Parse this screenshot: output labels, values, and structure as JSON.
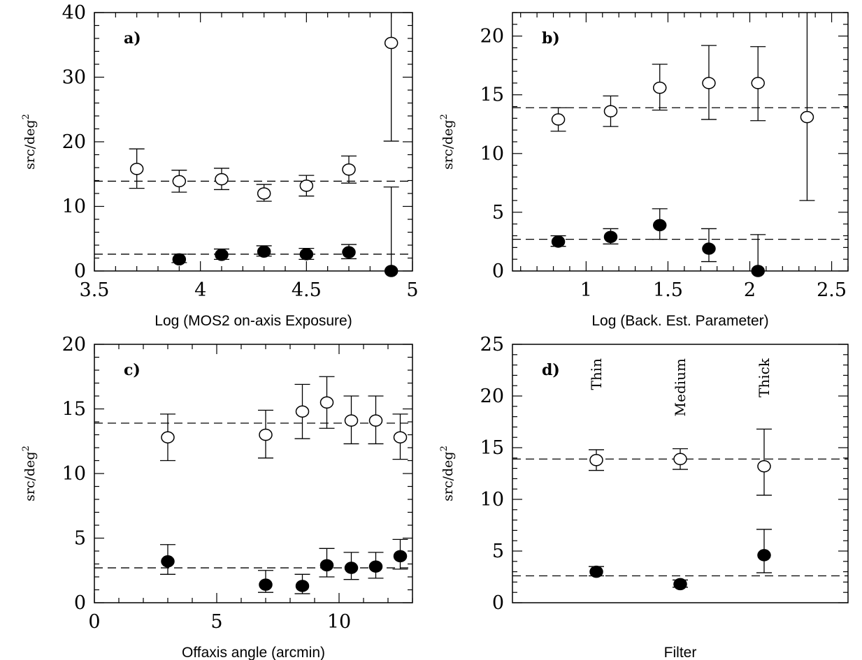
{
  "chart_data": [
    {
      "type": "scatter",
      "panel_label": "a)",
      "xlabel": "Log (MOS2 on-axis Exposure)",
      "ylabel": "src/deg",
      "ylabel_sup": "2",
      "xlim": [
        3.5,
        5
      ],
      "ylim": [
        0,
        40
      ],
      "xticks": [
        3.5,
        4,
        4.5,
        5
      ],
      "xtick_labels": [
        "3.5",
        "4",
        "4.5",
        "5"
      ],
      "yticks": [
        0,
        10,
        20,
        30,
        40
      ],
      "ytick_labels": [
        "0",
        "10",
        "20",
        "30",
        "40"
      ],
      "x_minor": 0.1,
      "y_minor": 2,
      "reference_lines": [
        13.9,
        2.6
      ],
      "series": [
        {
          "marker": "open",
          "points": [
            {
              "x": 3.7,
              "y": 15.8,
              "lo": 12.8,
              "hi": 18.9
            },
            {
              "x": 3.9,
              "y": 13.9,
              "lo": 12.2,
              "hi": 15.6
            },
            {
              "x": 4.1,
              "y": 14.2,
              "lo": 12.6,
              "hi": 15.9
            },
            {
              "x": 4.3,
              "y": 12.0,
              "lo": 10.8,
              "hi": 13.4
            },
            {
              "x": 4.5,
              "y": 13.2,
              "lo": 11.6,
              "hi": 14.8
            },
            {
              "x": 4.7,
              "y": 15.7,
              "lo": 13.6,
              "hi": 17.8
            },
            {
              "x": 4.9,
              "y": 35.3,
              "lo": 20.1,
              "hi": 40
            }
          ]
        },
        {
          "marker": "filled",
          "points": [
            {
              "x": 3.9,
              "y": 1.8,
              "lo": 1.3,
              "hi": 2.6
            },
            {
              "x": 4.1,
              "y": 2.5,
              "lo": 1.8,
              "hi": 3.4
            },
            {
              "x": 4.3,
              "y": 3.0,
              "lo": 2.3,
              "hi": 3.9
            },
            {
              "x": 4.5,
              "y": 2.6,
              "lo": 1.8,
              "hi": 3.5
            },
            {
              "x": 4.7,
              "y": 2.9,
              "lo": 1.9,
              "hi": 4.1
            },
            {
              "x": 4.9,
              "y": 0,
              "lo": 0,
              "hi": 13.0
            }
          ]
        }
      ]
    },
    {
      "type": "scatter",
      "panel_label": "b)",
      "xlabel": "Log (Back. Est. Parameter)",
      "ylabel": "src/deg",
      "ylabel_sup": "2",
      "xlim": [
        0.55,
        2.6
      ],
      "ylim": [
        0,
        22
      ],
      "xticks": [
        1,
        1.5,
        2,
        2.5
      ],
      "xtick_labels": [
        "1",
        "1.5",
        "2",
        "2.5"
      ],
      "yticks": [
        0,
        5,
        10,
        15,
        20
      ],
      "ytick_labels": [
        "0",
        "5",
        "10",
        "15",
        "20"
      ],
      "x_minor": 0.1,
      "y_minor": 1,
      "reference_lines": [
        13.9,
        2.7
      ],
      "series": [
        {
          "marker": "open",
          "points": [
            {
              "x": 0.83,
              "y": 12.9,
              "lo": 11.9,
              "hi": 13.9
            },
            {
              "x": 1.15,
              "y": 13.6,
              "lo": 12.3,
              "hi": 14.9
            },
            {
              "x": 1.45,
              "y": 15.6,
              "lo": 13.7,
              "hi": 17.6
            },
            {
              "x": 1.75,
              "y": 16.0,
              "lo": 12.9,
              "hi": 19.2
            },
            {
              "x": 2.05,
              "y": 16.0,
              "lo": 12.8,
              "hi": 19.1
            },
            {
              "x": 2.35,
              "y": 13.1,
              "lo": 6.0,
              "hi": 22
            }
          ]
        },
        {
          "marker": "filled",
          "points": [
            {
              "x": 0.83,
              "y": 2.5,
              "lo": 2.1,
              "hi": 3.0
            },
            {
              "x": 1.15,
              "y": 2.9,
              "lo": 2.3,
              "hi": 3.6
            },
            {
              "x": 1.45,
              "y": 3.9,
              "lo": 2.7,
              "hi": 5.3
            },
            {
              "x": 1.75,
              "y": 1.9,
              "lo": 0.8,
              "hi": 3.6
            },
            {
              "x": 2.05,
              "y": 0,
              "lo": 0,
              "hi": 3.1
            }
          ]
        }
      ]
    },
    {
      "type": "scatter",
      "panel_label": "c)",
      "xlabel": "Offaxis angle (arcmin)",
      "ylabel": "src/deg",
      "ylabel_sup": "2",
      "xlim": [
        0,
        13
      ],
      "ylim": [
        0,
        20
      ],
      "xticks": [
        0,
        5,
        10
      ],
      "xtick_labels": [
        "0",
        "5",
        "10"
      ],
      "yticks": [
        0,
        5,
        10,
        15,
        20
      ],
      "ytick_labels": [
        "0",
        "5",
        "10",
        "15",
        "20"
      ],
      "x_minor": 1,
      "y_minor": 1,
      "reference_lines": [
        13.9,
        2.7
      ],
      "series": [
        {
          "marker": "open",
          "points": [
            {
              "x": 3,
              "y": 12.8,
              "lo": 11.0,
              "hi": 14.6
            },
            {
              "x": 7,
              "y": 13.0,
              "lo": 11.2,
              "hi": 14.9
            },
            {
              "x": 8.5,
              "y": 14.8,
              "lo": 12.7,
              "hi": 16.9
            },
            {
              "x": 9.5,
              "y": 15.5,
              "lo": 13.5,
              "hi": 17.5
            },
            {
              "x": 10.5,
              "y": 14.1,
              "lo": 12.3,
              "hi": 16.0
            },
            {
              "x": 11.5,
              "y": 14.1,
              "lo": 12.3,
              "hi": 16.0
            },
            {
              "x": 12.5,
              "y": 12.8,
              "lo": 11.1,
              "hi": 14.6
            }
          ]
        },
        {
          "marker": "filled",
          "points": [
            {
              "x": 3,
              "y": 3.2,
              "lo": 2.2,
              "hi": 4.5
            },
            {
              "x": 7,
              "y": 1.4,
              "lo": 0.8,
              "hi": 2.5
            },
            {
              "x": 8.5,
              "y": 1.3,
              "lo": 0.7,
              "hi": 2.2
            },
            {
              "x": 9.5,
              "y": 2.9,
              "lo": 2.0,
              "hi": 4.2
            },
            {
              "x": 10.5,
              "y": 2.7,
              "lo": 1.8,
              "hi": 3.9
            },
            {
              "x": 11.5,
              "y": 2.8,
              "lo": 1.9,
              "hi": 3.9
            },
            {
              "x": 12.5,
              "y": 3.6,
              "lo": 2.6,
              "hi": 4.9
            }
          ]
        }
      ]
    },
    {
      "type": "scatter",
      "panel_label": "d)",
      "xlabel": "Filter",
      "ylabel": "src/deg",
      "ylabel_sup": "2",
      "xlim": [
        0,
        4
      ],
      "ylim": [
        0,
        25
      ],
      "xticks": [],
      "xtick_labels": [],
      "yticks": [
        0,
        5,
        10,
        15,
        20,
        25
      ],
      "ytick_labels": [
        "0",
        "5",
        "10",
        "15",
        "20",
        "25"
      ],
      "x_minor": 0,
      "y_minor": 1,
      "reference_lines": [
        13.9,
        2.6
      ],
      "categories": [
        {
          "x": 1,
          "label": "Thin"
        },
        {
          "x": 2,
          "label": "Medium"
        },
        {
          "x": 3,
          "label": "Thick"
        }
      ],
      "series": [
        {
          "marker": "open",
          "points": [
            {
              "x": 1,
              "y": 13.8,
              "lo": 12.8,
              "hi": 14.8
            },
            {
              "x": 2,
              "y": 13.9,
              "lo": 12.9,
              "hi": 14.9
            },
            {
              "x": 3,
              "y": 13.2,
              "lo": 10.4,
              "hi": 16.8
            }
          ]
        },
        {
          "marker": "filled",
          "points": [
            {
              "x": 1,
              "y": 3.0,
              "lo": 2.6,
              "hi": 3.5
            },
            {
              "x": 2,
              "y": 1.8,
              "lo": 1.5,
              "hi": 2.2
            },
            {
              "x": 3,
              "y": 4.6,
              "lo": 2.9,
              "hi": 7.1
            }
          ]
        }
      ]
    }
  ]
}
